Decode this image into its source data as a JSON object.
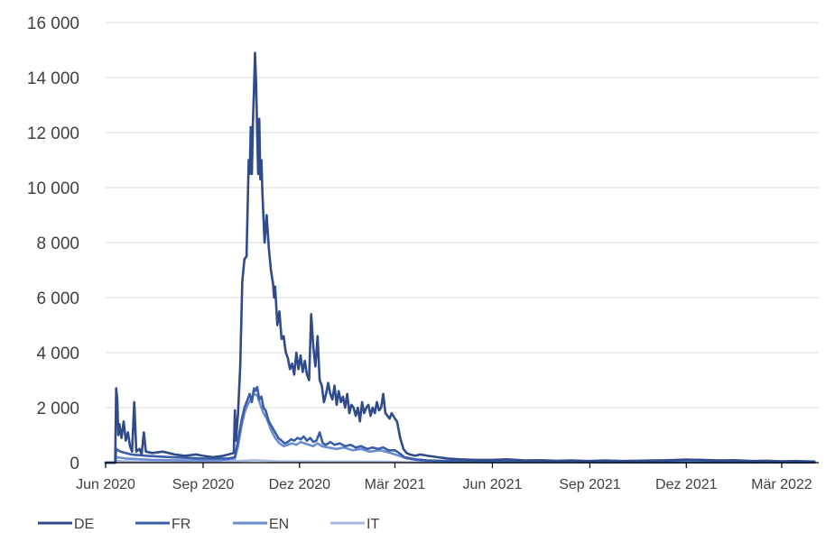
{
  "chart_data": {
    "type": "line",
    "title": "",
    "xlabel": "",
    "ylabel": "",
    "ylim": [
      0,
      16000
    ],
    "xlim": [
      "2020-06-01",
      "2022-04-05"
    ],
    "y_ticks": [
      0,
      2000,
      4000,
      6000,
      8000,
      10000,
      12000,
      14000,
      16000
    ],
    "y_tick_labels": [
      "0",
      "2 000",
      "4 000",
      "6 000",
      "8 000",
      "10 000",
      "12 000",
      "14 000",
      "16 000"
    ],
    "x_ticks": [
      "2020-06-01",
      "2020-09-01",
      "2020-12-01",
      "2021-03-01",
      "2021-06-01",
      "2021-09-01",
      "2021-12-01",
      "2022-03-01"
    ],
    "x_tick_labels": [
      "Jun 2020",
      "Sep 2020",
      "Dez 2020",
      "Mär 2021",
      "Jun 2021",
      "Sep 2021",
      "Dez 2021",
      "Mär 2022"
    ],
    "grid": "horizontal",
    "legend": "bottom-left",
    "colors": {
      "DE": "#2f4b8c",
      "FR": "#3b5ea8",
      "EN": "#6c8ed1",
      "IT": "#a9b8de"
    },
    "series": [
      {
        "name": "DE",
        "points": [
          [
            "2020-06-01",
            0
          ],
          [
            "2020-06-10",
            0
          ],
          [
            "2020-06-11",
            2700
          ],
          [
            "2020-06-12",
            2300
          ],
          [
            "2020-06-13",
            1000
          ],
          [
            "2020-06-14",
            1400
          ],
          [
            "2020-06-16",
            900
          ],
          [
            "2020-06-18",
            1500
          ],
          [
            "2020-06-20",
            800
          ],
          [
            "2020-06-22",
            1100
          ],
          [
            "2020-06-24",
            600
          ],
          [
            "2020-06-26",
            400
          ],
          [
            "2020-06-28",
            2200
          ],
          [
            "2020-06-30",
            400
          ],
          [
            "2020-07-03",
            500
          ],
          [
            "2020-07-05",
            300
          ],
          [
            "2020-07-07",
            1100
          ],
          [
            "2020-07-09",
            400
          ],
          [
            "2020-07-15",
            350
          ],
          [
            "2020-07-25",
            400
          ],
          [
            "2020-08-05",
            300
          ],
          [
            "2020-08-15",
            250
          ],
          [
            "2020-08-25",
            300
          ],
          [
            "2020-09-01",
            250
          ],
          [
            "2020-09-10",
            200
          ],
          [
            "2020-09-20",
            250
          ],
          [
            "2020-09-25",
            300
          ],
          [
            "2020-09-30",
            350
          ],
          [
            "2020-10-01",
            1900
          ],
          [
            "2020-10-02",
            800
          ],
          [
            "2020-10-04",
            1800
          ],
          [
            "2020-10-06",
            3500
          ],
          [
            "2020-10-08",
            6600
          ],
          [
            "2020-10-10",
            7400
          ],
          [
            "2020-10-12",
            7500
          ],
          [
            "2020-10-14",
            11000
          ],
          [
            "2020-10-15",
            10500
          ],
          [
            "2020-10-16",
            12200
          ],
          [
            "2020-10-17",
            10500
          ],
          [
            "2020-10-18",
            12400
          ],
          [
            "2020-10-19",
            13500
          ],
          [
            "2020-10-20",
            14900
          ],
          [
            "2020-10-21",
            13800
          ],
          [
            "2020-10-22",
            12000
          ],
          [
            "2020-10-23",
            10500
          ],
          [
            "2020-10-24",
            12500
          ],
          [
            "2020-10-25",
            10300
          ],
          [
            "2020-10-26",
            11000
          ],
          [
            "2020-10-27",
            9800
          ],
          [
            "2020-10-29",
            8000
          ],
          [
            "2020-10-31",
            9000
          ],
          [
            "2020-11-02",
            7800
          ],
          [
            "2020-11-04",
            7000
          ],
          [
            "2020-11-06",
            6500
          ],
          [
            "2020-11-07",
            6000
          ],
          [
            "2020-11-08",
            6400
          ],
          [
            "2020-11-10",
            5000
          ],
          [
            "2020-11-12",
            5500
          ],
          [
            "2020-11-14",
            4500
          ],
          [
            "2020-11-16",
            4600
          ],
          [
            "2020-11-18",
            4000
          ],
          [
            "2020-11-20",
            3800
          ],
          [
            "2020-11-22",
            3400
          ],
          [
            "2020-11-24",
            3600
          ],
          [
            "2020-11-26",
            3200
          ],
          [
            "2020-11-28",
            4000
          ],
          [
            "2020-11-30",
            3400
          ],
          [
            "2020-12-02",
            3900
          ],
          [
            "2020-12-04",
            3300
          ],
          [
            "2020-12-06",
            3700
          ],
          [
            "2020-12-08",
            3200
          ],
          [
            "2020-12-10",
            3000
          ],
          [
            "2020-12-12",
            5400
          ],
          [
            "2020-12-14",
            4200
          ],
          [
            "2020-12-16",
            3500
          ],
          [
            "2020-12-18",
            4600
          ],
          [
            "2020-12-20",
            3000
          ],
          [
            "2020-12-22",
            2800
          ],
          [
            "2020-12-24",
            2200
          ],
          [
            "2020-12-26",
            2500
          ],
          [
            "2020-12-28",
            2900
          ],
          [
            "2020-12-30",
            2500
          ],
          [
            "2021-01-01",
            2300
          ],
          [
            "2021-01-03",
            2800
          ],
          [
            "2021-01-05",
            2100
          ],
          [
            "2021-01-07",
            2600
          ],
          [
            "2021-01-09",
            2200
          ],
          [
            "2021-01-11",
            2400
          ],
          [
            "2021-01-13",
            2000
          ],
          [
            "2021-01-15",
            2500
          ],
          [
            "2021-01-17",
            1800
          ],
          [
            "2021-01-19",
            2100
          ],
          [
            "2021-01-21",
            2000
          ],
          [
            "2021-01-23",
            1700
          ],
          [
            "2021-01-25",
            2000
          ],
          [
            "2021-01-27",
            1500
          ],
          [
            "2021-01-29",
            2200
          ],
          [
            "2021-01-31",
            1800
          ],
          [
            "2021-02-02",
            2000
          ],
          [
            "2021-02-04",
            2100
          ],
          [
            "2021-02-06",
            1700
          ],
          [
            "2021-02-08",
            2000
          ],
          [
            "2021-02-10",
            1800
          ],
          [
            "2021-02-12",
            2200
          ],
          [
            "2021-02-14",
            1900
          ],
          [
            "2021-02-16",
            2000
          ],
          [
            "2021-02-18",
            2500
          ],
          [
            "2021-02-20",
            1800
          ],
          [
            "2021-02-22",
            1700
          ],
          [
            "2021-02-24",
            1600
          ],
          [
            "2021-02-26",
            1800
          ],
          [
            "2021-03-01",
            1600
          ],
          [
            "2021-03-03",
            1500
          ],
          [
            "2021-03-06",
            900
          ],
          [
            "2021-03-09",
            500
          ],
          [
            "2021-03-12",
            350
          ],
          [
            "2021-03-15",
            300
          ],
          [
            "2021-03-20",
            250
          ],
          [
            "2021-03-25",
            300
          ],
          [
            "2021-04-01",
            250
          ],
          [
            "2021-04-10",
            200
          ],
          [
            "2021-04-20",
            150
          ],
          [
            "2021-05-01",
            120
          ],
          [
            "2021-05-15",
            100
          ],
          [
            "2021-06-01",
            100
          ],
          [
            "2021-06-15",
            120
          ],
          [
            "2021-07-01",
            80
          ],
          [
            "2021-07-15",
            90
          ],
          [
            "2021-08-01",
            70
          ],
          [
            "2021-08-15",
            80
          ],
          [
            "2021-09-01",
            60
          ],
          [
            "2021-09-15",
            80
          ],
          [
            "2021-10-01",
            60
          ],
          [
            "2021-10-15",
            70
          ],
          [
            "2021-11-01",
            80
          ],
          [
            "2021-11-15",
            90
          ],
          [
            "2021-12-01",
            110
          ],
          [
            "2021-12-15",
            100
          ],
          [
            "2022-01-01",
            80
          ],
          [
            "2022-01-15",
            90
          ],
          [
            "2022-02-01",
            60
          ],
          [
            "2022-02-15",
            70
          ],
          [
            "2022-03-01",
            50
          ],
          [
            "2022-03-15",
            60
          ],
          [
            "2022-04-01",
            40
          ]
        ]
      },
      {
        "name": "FR",
        "points": [
          [
            "2020-06-01",
            0
          ],
          [
            "2020-06-10",
            0
          ],
          [
            "2020-06-11",
            500
          ],
          [
            "2020-06-15",
            400
          ],
          [
            "2020-06-25",
            300
          ],
          [
            "2020-07-10",
            250
          ],
          [
            "2020-08-01",
            200
          ],
          [
            "2020-09-01",
            150
          ],
          [
            "2020-09-25",
            150
          ],
          [
            "2020-10-01",
            200
          ],
          [
            "2020-10-04",
            800
          ],
          [
            "2020-10-07",
            1500
          ],
          [
            "2020-10-10",
            2000
          ],
          [
            "2020-10-13",
            2300
          ],
          [
            "2020-10-15",
            2500
          ],
          [
            "2020-10-17",
            2200
          ],
          [
            "2020-10-19",
            2700
          ],
          [
            "2020-10-20",
            2600
          ],
          [
            "2020-10-22",
            2750
          ],
          [
            "2020-10-24",
            2300
          ],
          [
            "2020-10-26",
            2400
          ],
          [
            "2020-10-28",
            2000
          ],
          [
            "2020-10-30",
            1900
          ],
          [
            "2020-11-02",
            1500
          ],
          [
            "2020-11-05",
            1300
          ],
          [
            "2020-11-08",
            1100
          ],
          [
            "2020-11-11",
            900
          ],
          [
            "2020-11-14",
            800
          ],
          [
            "2020-11-17",
            700
          ],
          [
            "2020-11-20",
            750
          ],
          [
            "2020-11-23",
            850
          ],
          [
            "2020-11-26",
            800
          ],
          [
            "2020-11-29",
            900
          ],
          [
            "2020-12-02",
            850
          ],
          [
            "2020-12-05",
            950
          ],
          [
            "2020-12-08",
            800
          ],
          [
            "2020-12-11",
            900
          ],
          [
            "2020-12-14",
            750
          ],
          [
            "2020-12-17",
            800
          ],
          [
            "2020-12-20",
            1100
          ],
          [
            "2020-12-23",
            700
          ],
          [
            "2020-12-26",
            650
          ],
          [
            "2020-12-30",
            750
          ],
          [
            "2021-01-03",
            650
          ],
          [
            "2021-01-08",
            700
          ],
          [
            "2021-01-13",
            600
          ],
          [
            "2021-01-18",
            650
          ],
          [
            "2021-01-23",
            550
          ],
          [
            "2021-01-28",
            600
          ],
          [
            "2021-02-03",
            500
          ],
          [
            "2021-02-08",
            550
          ],
          [
            "2021-02-13",
            500
          ],
          [
            "2021-02-18",
            550
          ],
          [
            "2021-02-23",
            450
          ],
          [
            "2021-03-01",
            450
          ],
          [
            "2021-03-05",
            350
          ],
          [
            "2021-03-10",
            200
          ],
          [
            "2021-03-20",
            120
          ],
          [
            "2021-04-01",
            80
          ],
          [
            "2021-05-01",
            50
          ],
          [
            "2021-07-01",
            30
          ],
          [
            "2021-10-01",
            20
          ],
          [
            "2022-01-01",
            20
          ],
          [
            "2022-04-01",
            15
          ]
        ]
      },
      {
        "name": "EN",
        "points": [
          [
            "2020-06-01",
            0
          ],
          [
            "2020-06-10",
            0
          ],
          [
            "2020-06-11",
            200
          ],
          [
            "2020-06-20",
            150
          ],
          [
            "2020-07-15",
            100
          ],
          [
            "2020-08-15",
            80
          ],
          [
            "2020-09-15",
            80
          ],
          [
            "2020-10-01",
            150
          ],
          [
            "2020-10-04",
            600
          ],
          [
            "2020-10-07",
            1300
          ],
          [
            "2020-10-10",
            1800
          ],
          [
            "2020-10-13",
            2100
          ],
          [
            "2020-10-16",
            2300
          ],
          [
            "2020-10-19",
            2500
          ],
          [
            "2020-10-22",
            2450
          ],
          [
            "2020-10-25",
            2100
          ],
          [
            "2020-10-28",
            1800
          ],
          [
            "2020-10-31",
            1600
          ],
          [
            "2020-11-04",
            1200
          ],
          [
            "2020-11-08",
            900
          ],
          [
            "2020-11-12",
            700
          ],
          [
            "2020-11-16",
            600
          ],
          [
            "2020-11-20",
            650
          ],
          [
            "2020-11-24",
            700
          ],
          [
            "2020-11-28",
            650
          ],
          [
            "2020-12-02",
            750
          ],
          [
            "2020-12-06",
            700
          ],
          [
            "2020-12-10",
            650
          ],
          [
            "2020-12-14",
            600
          ],
          [
            "2020-12-18",
            700
          ],
          [
            "2020-12-22",
            600
          ],
          [
            "2020-12-28",
            550
          ],
          [
            "2021-01-05",
            500
          ],
          [
            "2021-01-12",
            550
          ],
          [
            "2021-01-20",
            450
          ],
          [
            "2021-01-28",
            500
          ],
          [
            "2021-02-05",
            400
          ],
          [
            "2021-02-15",
            450
          ],
          [
            "2021-02-25",
            350
          ],
          [
            "2021-03-05",
            250
          ],
          [
            "2021-03-12",
            150
          ],
          [
            "2021-03-25",
            80
          ],
          [
            "2021-04-15",
            40
          ],
          [
            "2021-06-01",
            20
          ],
          [
            "2021-10-01",
            15
          ],
          [
            "2022-01-01",
            10
          ],
          [
            "2022-04-01",
            10
          ]
        ]
      },
      {
        "name": "IT",
        "points": [
          [
            "2020-06-01",
            0
          ],
          [
            "2020-06-10",
            0
          ],
          [
            "2020-06-11",
            60
          ],
          [
            "2020-07-01",
            30
          ],
          [
            "2020-09-01",
            20
          ],
          [
            "2020-10-05",
            60
          ],
          [
            "2020-10-20",
            90
          ],
          [
            "2020-11-10",
            50
          ],
          [
            "2020-12-15",
            40
          ],
          [
            "2021-01-15",
            35
          ],
          [
            "2021-02-15",
            30
          ],
          [
            "2021-03-15",
            15
          ],
          [
            "2021-06-01",
            5
          ],
          [
            "2022-04-01",
            5
          ]
        ]
      }
    ]
  }
}
